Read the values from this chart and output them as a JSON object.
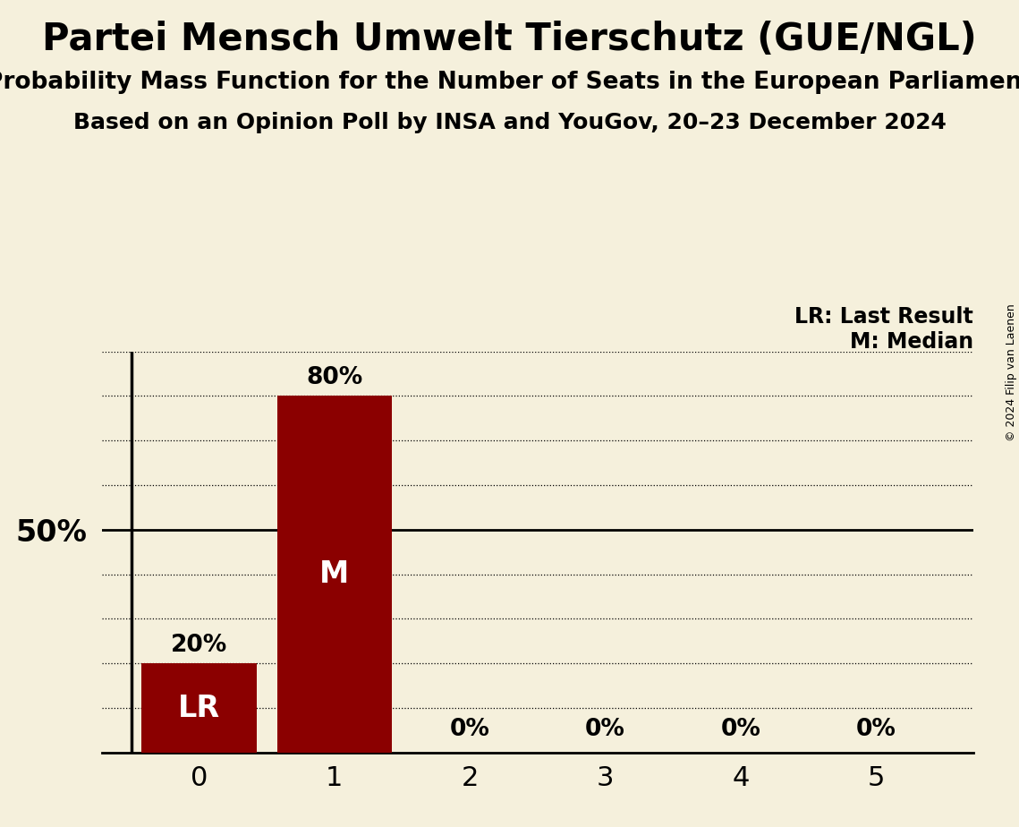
{
  "title": "Partei Mensch Umwelt Tierschutz (GUE/NGL)",
  "subtitle1": "Probability Mass Function for the Number of Seats in the European Parliament",
  "subtitle2": "Based on an Opinion Poll by INSA and YouGov, 20–23 December 2024",
  "copyright": "© 2024 Filip van Laenen",
  "categories": [
    0,
    1,
    2,
    3,
    4,
    5
  ],
  "values": [
    20,
    80,
    0,
    0,
    0,
    0
  ],
  "bar_color": "#8B0000",
  "background_color": "#F5F0DC",
  "label_50_text": "50%",
  "bar_labels": [
    "LR",
    "M",
    "",
    "",
    "",
    ""
  ],
  "bar_label_fontsize": 24,
  "bar_top_labels": [
    "20%",
    "80%",
    "0%",
    "0%",
    "0%",
    "0%"
  ],
  "legend_lr": "LR: Last Result",
  "legend_m": "M: Median",
  "title_fontsize": 30,
  "subtitle1_fontsize": 19,
  "subtitle2_fontsize": 18,
  "annotation_fontsize": 19,
  "legend_fontsize": 17,
  "ytick_fontsize": 24,
  "xtick_fontsize": 22,
  "ylim": [
    0,
    90
  ],
  "dotted_grid_levels": [
    10,
    20,
    30,
    40,
    60,
    70,
    80,
    90
  ],
  "solid_grid_level": 50,
  "copyright_fontsize": 9
}
